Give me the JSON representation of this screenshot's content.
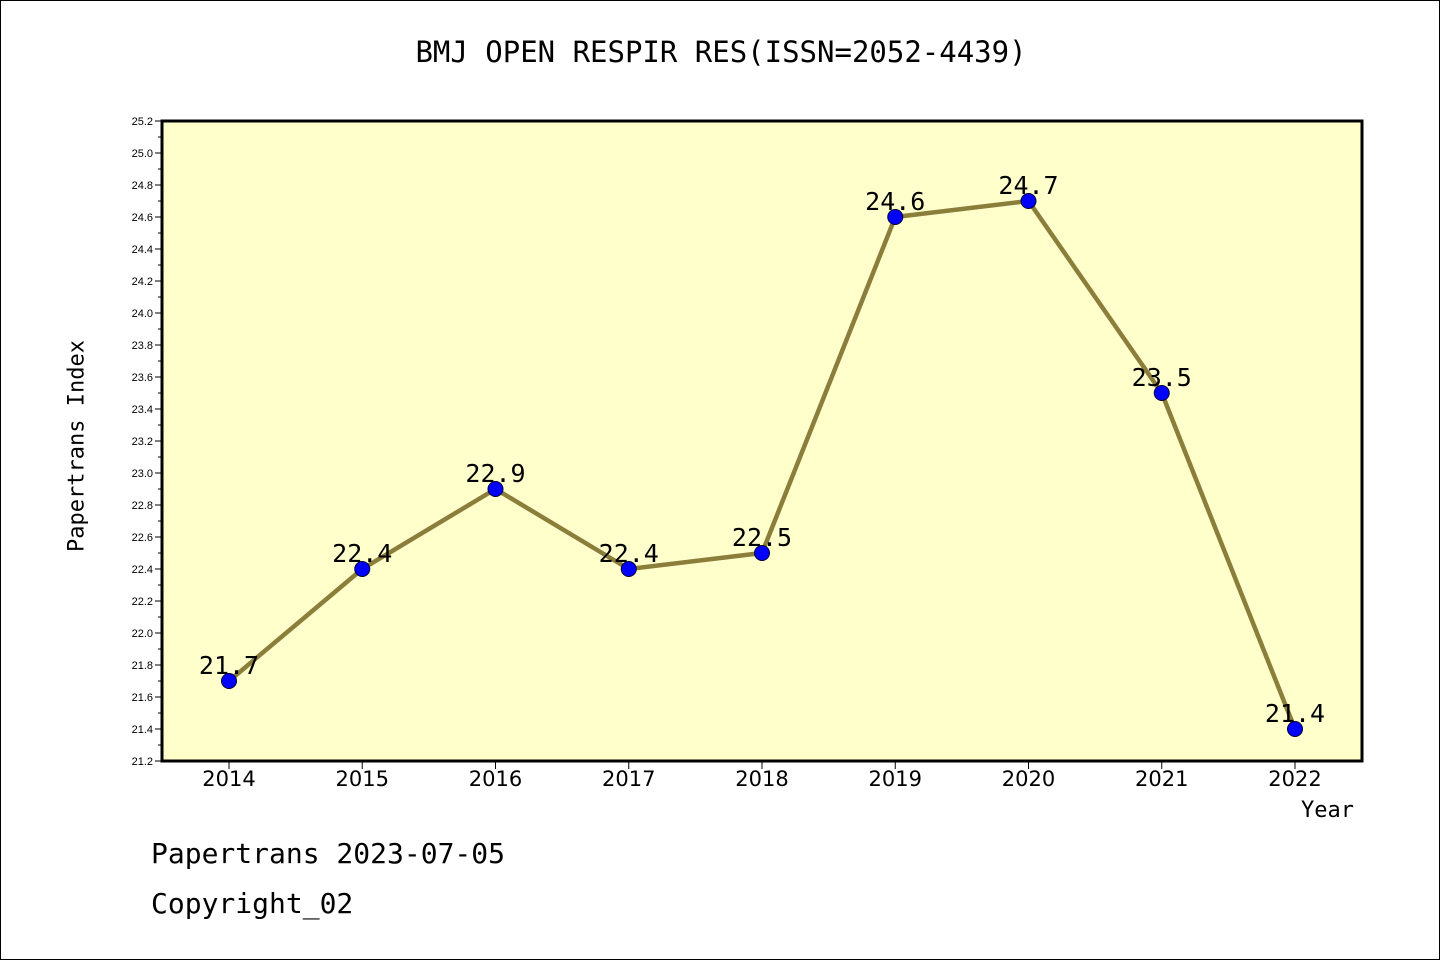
{
  "chart_data": {
    "type": "line",
    "title": "BMJ OPEN RESPIR RES(ISSN=2052-4439)",
    "xlabel": "Year",
    "ylabel": "Papertrans Index",
    "categories": [
      "2014",
      "2015",
      "2016",
      "2017",
      "2018",
      "2019",
      "2020",
      "2021",
      "2022"
    ],
    "values": [
      21.7,
      22.4,
      22.9,
      22.4,
      22.5,
      24.6,
      24.7,
      23.5,
      21.4
    ],
    "data_labels": [
      "21.7",
      "22.4",
      "22.9",
      "22.4",
      "22.5",
      "24.6",
      "24.7",
      "23.5",
      "21.4"
    ],
    "ylim": [
      21.2,
      25.2
    ],
    "yticks": [
      "21.2",
      "21.4",
      "21.6",
      "21.8",
      "22.0",
      "22.2",
      "22.4",
      "22.6",
      "22.8",
      "23.0",
      "23.2",
      "23.4",
      "23.6",
      "23.8",
      "24.0",
      "24.2",
      "24.4",
      "24.6",
      "24.8",
      "25.0",
      "25.2"
    ],
    "grid": false,
    "colors": {
      "plot_background": "#ffffcc",
      "line": "#8b7d3a",
      "marker": "#0000ff"
    }
  },
  "footer": {
    "line1": "Papertrans 2023-07-05",
    "line2": "Copyright_02"
  }
}
